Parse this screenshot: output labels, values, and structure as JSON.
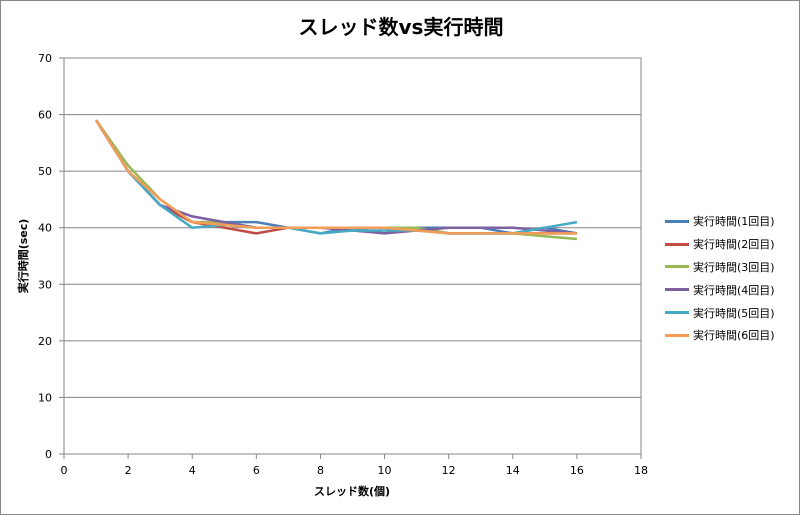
{
  "chart_data": {
    "type": "line",
    "title": "スレッド数vs実行時間",
    "xlabel": "スレッド数(個)",
    "ylabel": "実行時間(sec)",
    "xlim": [
      0,
      18
    ],
    "ylim": [
      0,
      70
    ],
    "xticks": [
      0,
      2,
      4,
      6,
      8,
      10,
      12,
      14,
      16,
      18
    ],
    "yticks": [
      0,
      10,
      20,
      30,
      40,
      50,
      60,
      70
    ],
    "grid": "horizontal",
    "legend_position": "right",
    "x": [
      1,
      2,
      3,
      4,
      5,
      6,
      7,
      8,
      9,
      10,
      11,
      12,
      13,
      14,
      15,
      16
    ],
    "series": [
      {
        "name": "実行時間(1回目)",
        "color": "#4A7EBB",
        "values": [
          59,
          50,
          44,
          41,
          41,
          41,
          40,
          39,
          40,
          39,
          40,
          40,
          40,
          39,
          40,
          39
        ]
      },
      {
        "name": "実行時間(2回目)",
        "color": "#BE4B48",
        "values": [
          59,
          50,
          44,
          41,
          40,
          39,
          40,
          40,
          40,
          40,
          40,
          39,
          39,
          39,
          39,
          39
        ]
      },
      {
        "name": "実行時間(3回目)",
        "color": "#98B954",
        "values": [
          59,
          51,
          45,
          41,
          41,
          40,
          40,
          40,
          40,
          40,
          40,
          39,
          39,
          39,
          38.5,
          38
        ]
      },
      {
        "name": "実行時間(4回目)",
        "color": "#7D60A0",
        "values": [
          59,
          50,
          44,
          42,
          41,
          40,
          40,
          40,
          39.5,
          39,
          39.5,
          40,
          40,
          40,
          39.5,
          39
        ]
      },
      {
        "name": "実行時間(5回目)",
        "color": "#46AAC5",
        "values": [
          59,
          50,
          44,
          40,
          40.5,
          40,
          40,
          39,
          39.5,
          39.5,
          39.5,
          39,
          39,
          39,
          40,
          41
        ]
      },
      {
        "name": "実行時間(6回目)",
        "color": "#F59D56",
        "values": [
          59,
          50,
          45,
          41,
          40.5,
          40,
          40,
          40,
          40,
          40,
          39.5,
          39,
          39,
          39,
          39,
          39
        ]
      }
    ]
  }
}
